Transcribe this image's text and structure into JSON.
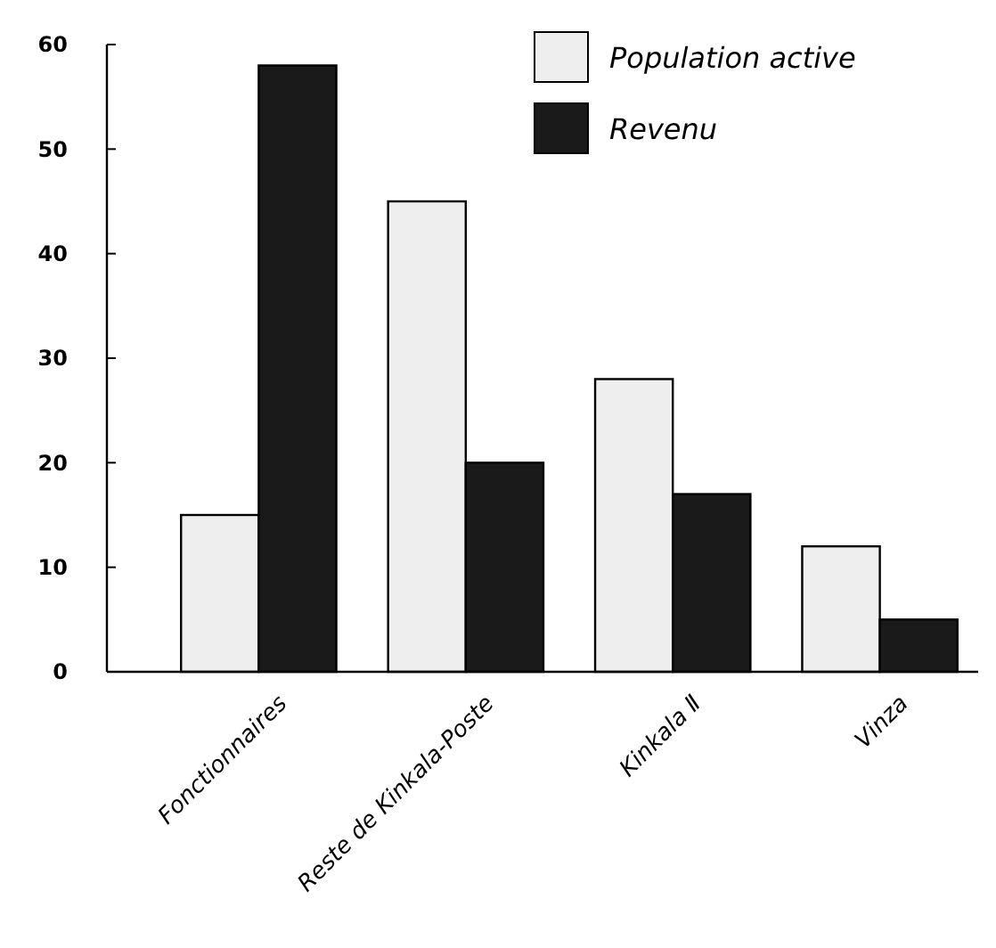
{
  "chart_data": {
    "type": "bar",
    "categories": [
      "Fonctionnaires",
      "Reste de Kinkala-Poste",
      "Kinkala Ⅱ",
      "Vinza"
    ],
    "series": [
      {
        "name": "Population active",
        "color": "#eeeeee",
        "values": [
          15,
          45,
          28,
          12
        ]
      },
      {
        "name": "Revenu",
        "color": "#1a1a1a",
        "values": [
          58,
          20,
          17,
          5
        ]
      }
    ],
    "ylim": [
      0,
      60
    ],
    "yticks": [
      0,
      10,
      20,
      30,
      40,
      50,
      60
    ],
    "grid": false,
    "legend": "top right"
  }
}
